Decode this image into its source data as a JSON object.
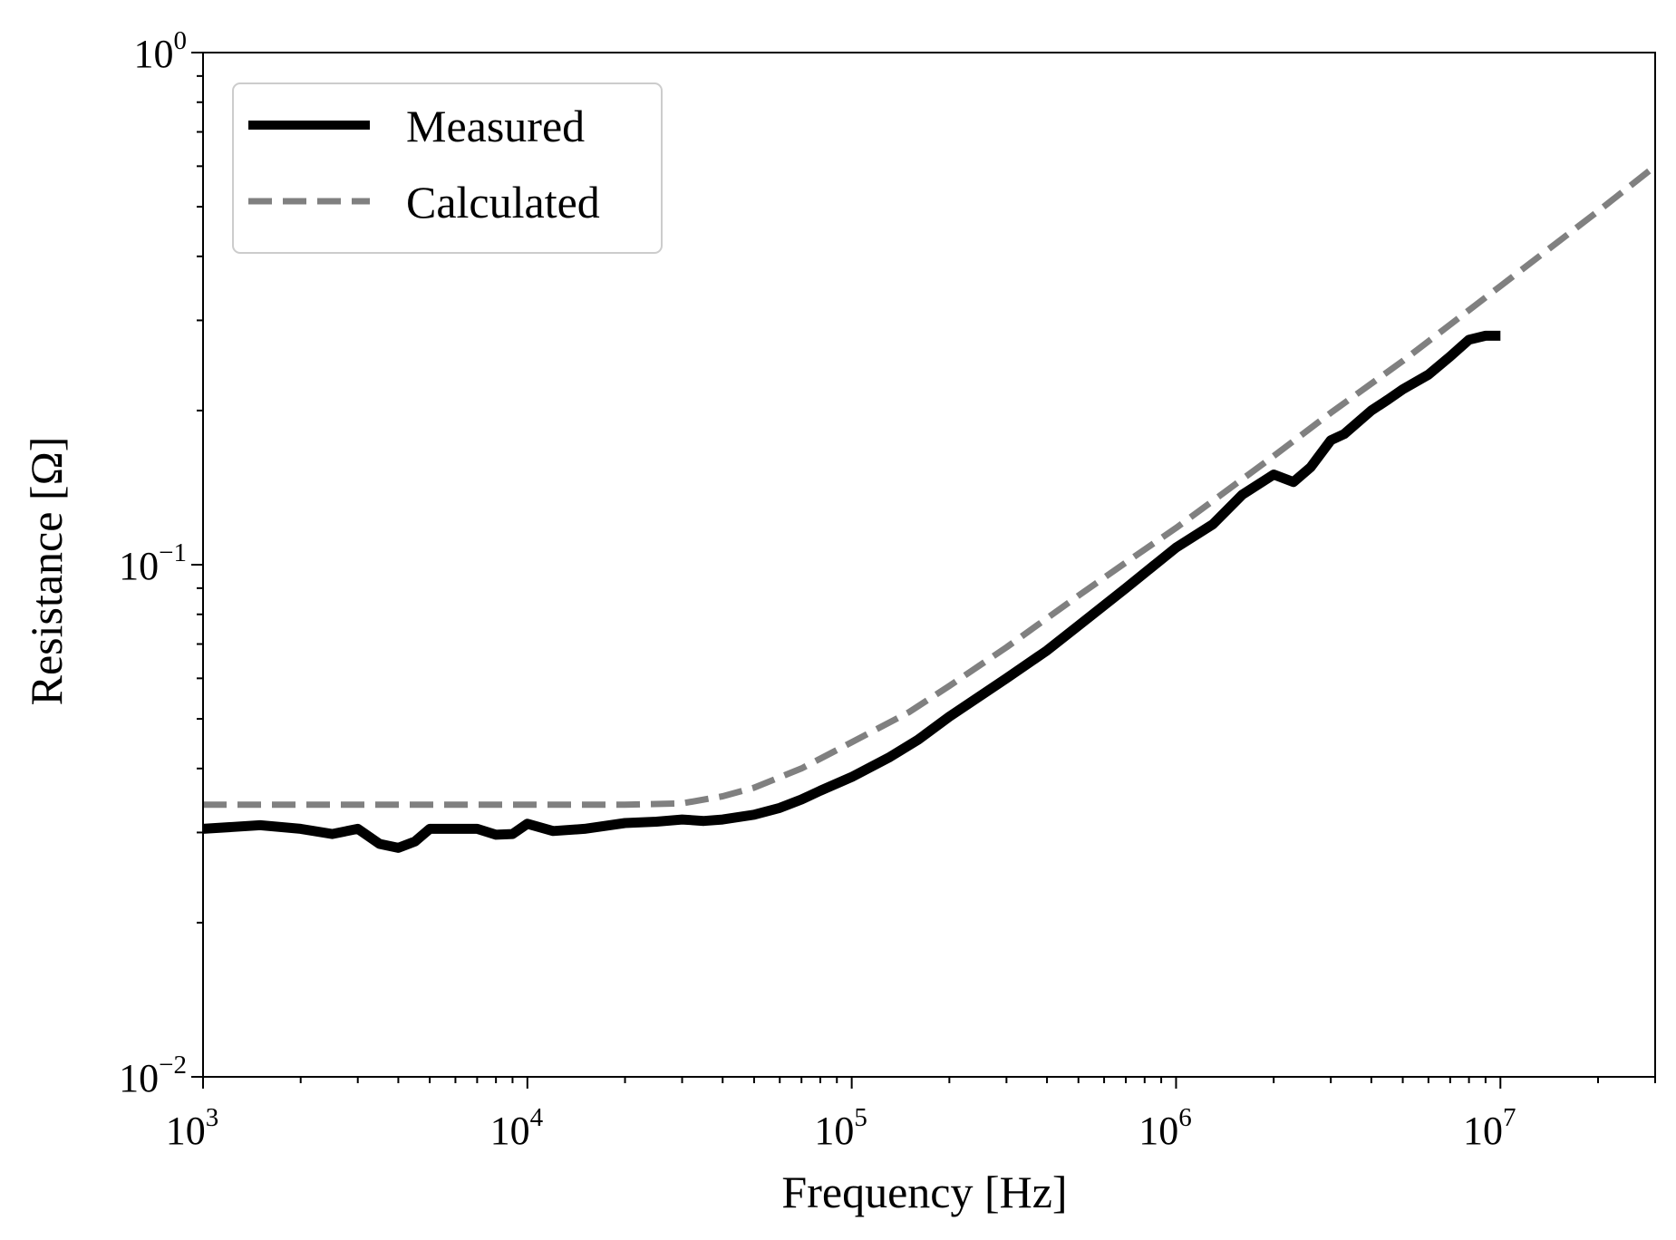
{
  "chart_data": {
    "type": "line",
    "title": "",
    "xlabel": "Frequency [Hz]",
    "ylabel": "Resistance [Ω]",
    "x_scale": "log",
    "y_scale": "log",
    "xlim": [
      1000,
      30000000
    ],
    "ylim": [
      0.01,
      1
    ],
    "grid": false,
    "legend_position": "top-left",
    "x_ticks": [
      {
        "value": 1000,
        "base": "10",
        "exp": "3"
      },
      {
        "value": 10000,
        "base": "10",
        "exp": "4"
      },
      {
        "value": 100000,
        "base": "10",
        "exp": "5"
      },
      {
        "value": 1000000,
        "base": "10",
        "exp": "6"
      },
      {
        "value": 10000000,
        "base": "10",
        "exp": "7"
      }
    ],
    "y_ticks": [
      {
        "value": 0.01,
        "base": "10",
        "exp": "−2"
      },
      {
        "value": 0.1,
        "base": "10",
        "exp": "−1"
      },
      {
        "value": 1,
        "base": "10",
        "exp": "0"
      }
    ],
    "series": [
      {
        "name": "Measured",
        "color": "#000000",
        "style": "solid",
        "x": [
          1000,
          1500,
          2000,
          2500,
          3000,
          3500,
          4000,
          4500,
          5000,
          6000,
          7000,
          8000,
          9000,
          10000,
          12000,
          15000,
          20000,
          25000,
          30000,
          35000,
          40000,
          50000,
          60000,
          70000,
          80000,
          100000,
          130000,
          160000,
          200000,
          300000,
          400000,
          500000,
          700000,
          1000000,
          1300000,
          1600000,
          2000000,
          2300000,
          2600000,
          3000000,
          3300000,
          4000000,
          4500000,
          5000000,
          6000000,
          7000000,
          8000000,
          9000000,
          10000000
        ],
        "y": [
          0.0305,
          0.031,
          0.0305,
          0.0298,
          0.0305,
          0.0285,
          0.028,
          0.0288,
          0.0305,
          0.0305,
          0.0305,
          0.0297,
          0.0298,
          0.0312,
          0.0302,
          0.0305,
          0.0313,
          0.0315,
          0.0318,
          0.0316,
          0.0318,
          0.0325,
          0.0335,
          0.0348,
          0.0362,
          0.0385,
          0.042,
          0.0455,
          0.0505,
          0.06,
          0.068,
          0.076,
          0.09,
          0.108,
          0.12,
          0.137,
          0.15,
          0.145,
          0.155,
          0.175,
          0.18,
          0.2,
          0.21,
          0.22,
          0.235,
          0.255,
          0.275,
          0.28,
          0.28
        ]
      },
      {
        "name": "Calculated",
        "color": "#808080",
        "style": "dashed",
        "x": [
          1000,
          3000,
          10000,
          20000,
          30000,
          40000,
          50000,
          70000,
          100000,
          150000,
          200000,
          300000,
          500000,
          700000,
          1000000,
          2000000,
          3000000,
          5000000,
          10000000,
          20000000,
          30000000
        ],
        "y": [
          0.034,
          0.034,
          0.034,
          0.034,
          0.0342,
          0.0353,
          0.0367,
          0.04,
          0.045,
          0.0515,
          0.058,
          0.069,
          0.087,
          0.101,
          0.118,
          0.163,
          0.198,
          0.25,
          0.35,
          0.49,
          0.6
        ]
      }
    ]
  }
}
